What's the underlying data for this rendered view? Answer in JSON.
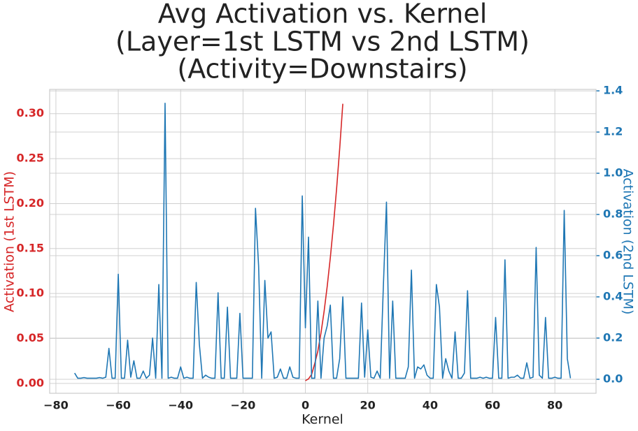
{
  "chart_data": {
    "type": "line",
    "title": [
      "Avg Activation vs. Kernel",
      "(Layer=1st LSTM vs 2nd LSTM)",
      "(Activity=Downstairs)"
    ],
    "xlabel": "Kernel",
    "ylabel": "Activation (1st LSTM)",
    "y2label": "Activation (2nd LSTM)",
    "xlim": [
      -82,
      93.2
    ],
    "ylim": [
      -0.011,
      0.327
    ],
    "y2lim": [
      -0.068,
      1.407
    ],
    "xticks": [
      {
        "value": -80,
        "label": "−80"
      },
      {
        "value": -60,
        "label": "−60"
      },
      {
        "value": -40,
        "label": "−40"
      },
      {
        "value": -20,
        "label": "−20"
      },
      0,
      20,
      40,
      60,
      80
    ],
    "yticks": [
      {
        "value": 0,
        "label": "0.00"
      },
      0.05,
      {
        "value": 0.1,
        "label": "0.10"
      },
      0.15,
      {
        "value": 0.2,
        "label": "0.20"
      },
      0.25,
      {
        "value": 0.3,
        "label": "0.30"
      }
    ],
    "y2ticks": [
      {
        "value": 0,
        "label": "0.0"
      },
      0.2,
      0.4,
      0.6,
      0.8,
      {
        "value": 1,
        "label": "1.0"
      },
      1.2,
      1.4
    ],
    "grid": true,
    "ycolor": "#d62728",
    "y2color": "#1f77b4",
    "series": [
      {
        "color": "#d62728",
        "x": [
          0,
          1,
          2,
          3,
          4,
          5,
          6,
          7,
          8,
          9,
          10,
          11,
          12
        ],
        "values": [
          0.003,
          0.005,
          0.01,
          0.022,
          0.036,
          0.056,
          0.08,
          0.108,
          0.14,
          0.176,
          0.216,
          0.261,
          0.311
        ]
      },
      {
        "color": "#1f77b4",
        "axis": "y2",
        "x": [
          -74,
          -73,
          -72,
          -71,
          -70,
          -69,
          -68,
          -67,
          -66,
          -65,
          -64,
          -63,
          -62,
          -61,
          -60,
          -59,
          -58,
          -57,
          -56,
          -55,
          -54,
          -53,
          -52,
          -51,
          -50,
          -49,
          -48,
          -47,
          -46,
          -45,
          -44,
          -43,
          -42,
          -41,
          -40,
          -39,
          -38,
          -37,
          -36,
          -35,
          -34,
          -33,
          -32,
          -31,
          -30,
          -29,
          -28,
          -27,
          -26,
          -25,
          -24,
          -23,
          -22,
          -21,
          -20,
          -19,
          -18,
          -17,
          -16,
          -15,
          -14,
          -13,
          -12,
          -11,
          -10,
          -9,
          -8,
          -7,
          -6,
          -5,
          -4,
          -3,
          -2,
          -1,
          0,
          1,
          2,
          3,
          4,
          5,
          6,
          7,
          8,
          9,
          10,
          11,
          12,
          13,
          14,
          15,
          16,
          17,
          18,
          19,
          20,
          21,
          22,
          23,
          24,
          25,
          26,
          27,
          28,
          29,
          30,
          31,
          32,
          33,
          34,
          35,
          36,
          37,
          38,
          39,
          40,
          41,
          42,
          43,
          44,
          45,
          46,
          47,
          48,
          49,
          50,
          51,
          52,
          53,
          54,
          55,
          56,
          57,
          58,
          59,
          60,
          61,
          62,
          63,
          64,
          65,
          66,
          67,
          68,
          69,
          70,
          71,
          72,
          73,
          74,
          75,
          76,
          77,
          78,
          79,
          80,
          81,
          82,
          83,
          84,
          85
        ],
        "values": [
          0.03,
          0.005,
          0.005,
          0.008,
          0.005,
          0.005,
          0.005,
          0.005,
          0.008,
          0.005,
          0.01,
          0.15,
          0.005,
          0.005,
          0.51,
          0.005,
          0.005,
          0.19,
          0.01,
          0.09,
          0.005,
          0.005,
          0.04,
          0.005,
          0.02,
          0.2,
          0.005,
          0.46,
          0.005,
          1.34,
          0.005,
          0.01,
          0.005,
          0.005,
          0.06,
          0.005,
          0.01,
          0.005,
          0.005,
          0.47,
          0.17,
          0.005,
          0.02,
          0.01,
          0.005,
          0.005,
          0.42,
          0.005,
          0.005,
          0.35,
          0.005,
          0.005,
          0.005,
          0.32,
          0.005,
          0.005,
          0.005,
          0.005,
          0.83,
          0.55,
          0.005,
          0.48,
          0.2,
          0.23,
          0.005,
          0.01,
          0.05,
          0.005,
          0.005,
          0.06,
          0.01,
          0.005,
          0.005,
          0.89,
          0.25,
          0.69,
          0.005,
          0.005,
          0.38,
          0.005,
          0.2,
          0.26,
          0.36,
          0.005,
          0.005,
          0.1,
          0.4,
          0.005,
          0.005,
          0.005,
          0.005,
          0.005,
          0.37,
          0.01,
          0.24,
          0.01,
          0.005,
          0.04,
          0.005,
          0.45,
          0.86,
          0.005,
          0.38,
          0.005,
          0.005,
          0.005,
          0.005,
          0.06,
          0.53,
          0.005,
          0.06,
          0.05,
          0.07,
          0.02,
          0.005,
          0.005,
          0.46,
          0.35,
          0.005,
          0.1,
          0.04,
          0.005,
          0.23,
          0.005,
          0.005,
          0.03,
          0.43,
          0.005,
          0.005,
          0.005,
          0.01,
          0.005,
          0.01,
          0.005,
          0.005,
          0.3,
          0.005,
          0.005,
          0.58,
          0.005,
          0.01,
          0.01,
          0.02,
          0.005,
          0.005,
          0.08,
          0.005,
          0.01,
          0.64,
          0.02,
          0.005,
          0.3,
          0.005,
          0.005,
          0.01,
          0.005,
          0.005,
          0.82,
          0.1,
          0.005
        ]
      }
    ]
  }
}
